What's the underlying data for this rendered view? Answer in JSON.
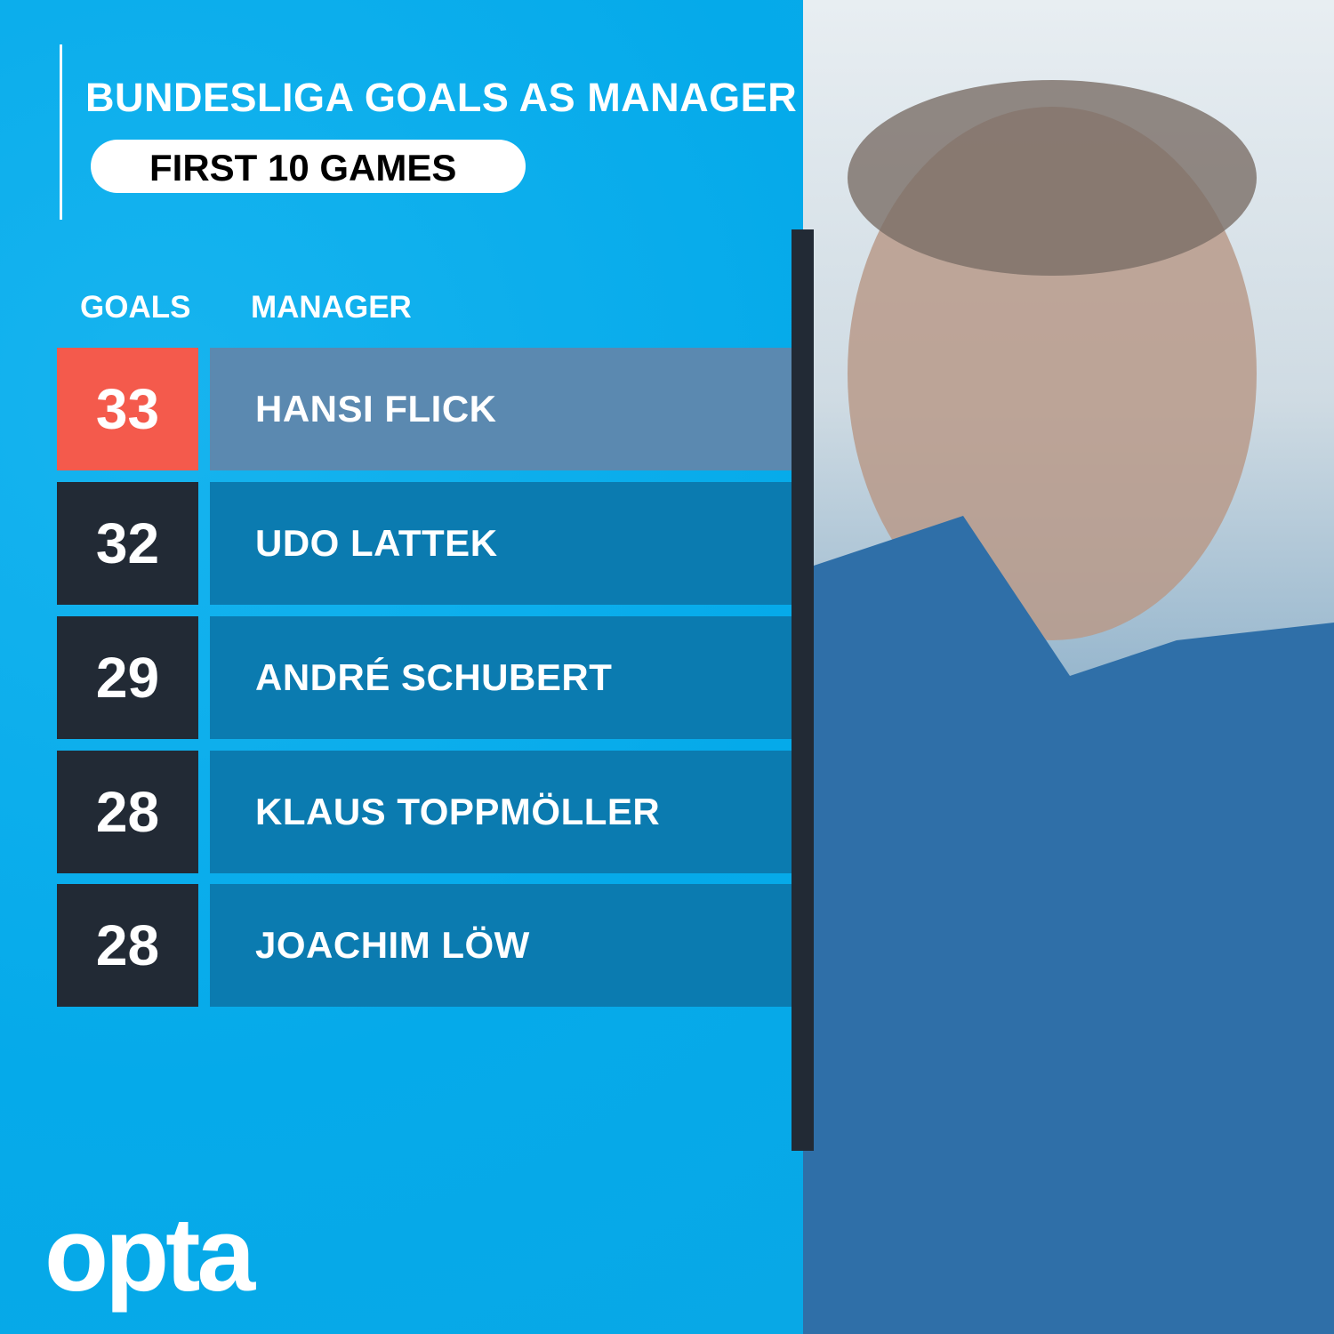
{
  "title": "BUNDESLIGA GOALS AS MANAGER",
  "subtitle": "FIRST 10 GAMES",
  "headers": {
    "goals": "GOALS",
    "manager": "MANAGER"
  },
  "chart_data": {
    "type": "table",
    "title": "BUNDESLIGA GOALS AS MANAGER",
    "subtitle": "FIRST 10 GAMES",
    "columns": [
      "GOALS",
      "MANAGER"
    ],
    "rows": [
      {
        "goals": "33",
        "manager": "HANSI FLICK",
        "highlight": true
      },
      {
        "goals": "32",
        "manager": "UDO LATTEK",
        "highlight": false
      },
      {
        "goals": "29",
        "manager": "ANDRÉ SCHUBERT",
        "highlight": false
      },
      {
        "goals": "28",
        "manager": "KLAUS TOPPMÖLLER",
        "highlight": false
      },
      {
        "goals": "28",
        "manager": "JOACHIM LÖW",
        "highlight": false
      }
    ]
  },
  "colors": {
    "background": "#0aaeea",
    "highlight_goals": "#f45a4c",
    "highlight_name": "#5b89b0",
    "goals_box": "#222a35",
    "name_box": "#0b7bb0"
  },
  "logo": "opta"
}
